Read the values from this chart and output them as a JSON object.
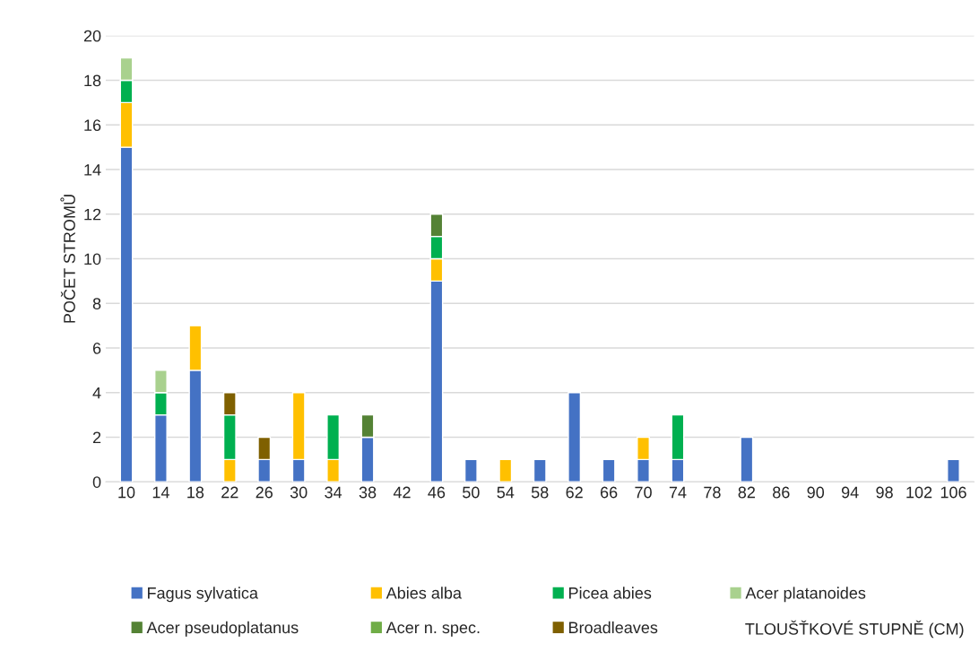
{
  "chart_data": {
    "type": "bar",
    "stacked": true,
    "annotations": [
      "TLOUŠŤKOVÉ STUPNĚ (CM)"
    ],
    "ylabel": "POČET STROMŮ",
    "categories": [
      "10",
      "14",
      "18",
      "22",
      "26",
      "30",
      "34",
      "38",
      "42",
      "46",
      "50",
      "54",
      "58",
      "62",
      "66",
      "70",
      "74",
      "78",
      "82",
      "86",
      "90",
      "94",
      "98",
      "102",
      "106"
    ],
    "series": [
      {
        "name": "Fagus sylvatica",
        "color": "#4472c4",
        "values": [
          15,
          3,
          5,
          null,
          1,
          1,
          null,
          2,
          null,
          9,
          1,
          null,
          1,
          4,
          1,
          1,
          1,
          null,
          2,
          null,
          null,
          null,
          null,
          null,
          1
        ]
      },
      {
        "name": "Abies alba",
        "color": "#ffc000",
        "values": [
          2,
          null,
          2,
          1,
          null,
          3,
          1,
          null,
          null,
          1,
          null,
          1,
          null,
          null,
          null,
          1,
          null,
          null,
          null,
          null,
          null,
          null,
          null,
          null,
          null
        ]
      },
      {
        "name": "Picea abies",
        "color": "#00b050",
        "values": [
          1,
          1,
          null,
          2,
          null,
          null,
          2,
          null,
          null,
          1,
          null,
          null,
          null,
          null,
          null,
          null,
          2,
          null,
          null,
          null,
          null,
          null,
          null,
          null,
          null
        ]
      },
      {
        "name": "Acer platanoides",
        "color": "#a9d18e",
        "values": [
          1,
          1,
          null,
          null,
          null,
          null,
          null,
          null,
          null,
          null,
          null,
          null,
          null,
          null,
          null,
          null,
          null,
          null,
          null,
          null,
          null,
          null,
          null,
          null,
          null
        ]
      },
      {
        "name": "Acer pseudoplatanus",
        "color": "#548235",
        "values": [
          null,
          null,
          null,
          null,
          null,
          null,
          null,
          1,
          null,
          1,
          null,
          null,
          null,
          null,
          null,
          null,
          null,
          null,
          null,
          null,
          null,
          null,
          null,
          null,
          null
        ]
      },
      {
        "name": "Acer n. spec.",
        "color": "#70ad47",
        "values": [
          null,
          null,
          null,
          null,
          null,
          null,
          null,
          null,
          null,
          null,
          null,
          null,
          null,
          null,
          null,
          null,
          null,
          null,
          null,
          null,
          null,
          null,
          null,
          null,
          null
        ]
      },
      {
        "name": "Broadleaves",
        "color": "#7f6000",
        "values": [
          null,
          null,
          null,
          1,
          1,
          null,
          null,
          null,
          null,
          null,
          null,
          null,
          null,
          null,
          null,
          null,
          null,
          null,
          null,
          null,
          null,
          null,
          null,
          null,
          null
        ]
      }
    ],
    "ylim": [
      0,
      20
    ],
    "yticks": [
      0,
      2,
      4,
      6,
      8,
      10,
      12,
      14,
      16,
      18,
      20
    ],
    "grid": "y",
    "legend": "bottom"
  }
}
